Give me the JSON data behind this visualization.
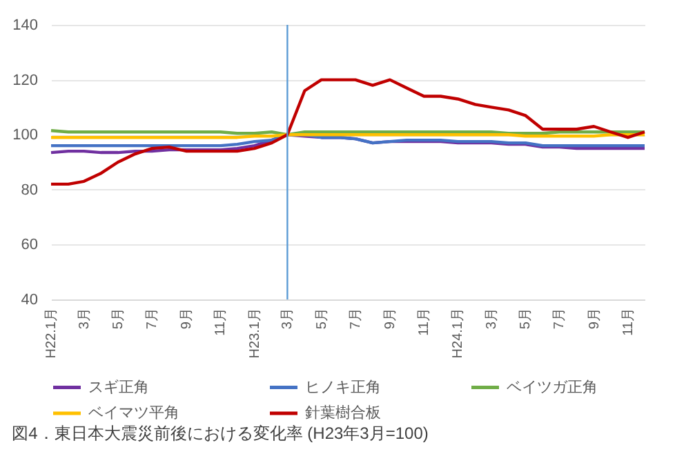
{
  "chart_data": {
    "type": "line",
    "title": "図4．東日本大震災前後における変化率 (H23年3月=100)",
    "x": [
      "2010-01",
      "2010-02",
      "2010-03",
      "2010-04",
      "2010-05",
      "2010-06",
      "2010-07",
      "2010-08",
      "2010-09",
      "2010-10",
      "2010-11",
      "2010-12",
      "2011-01",
      "2011-02",
      "2011-03",
      "2011-04",
      "2011-05",
      "2011-06",
      "2011-07",
      "2011-08",
      "2011-09",
      "2011-10",
      "2011-11",
      "2011-12",
      "2012-01",
      "2012-02",
      "2012-03",
      "2012-04",
      "2012-05",
      "2012-06",
      "2012-07",
      "2012-08",
      "2012-09",
      "2012-10",
      "2012-11",
      "2012-12"
    ],
    "series": [
      {
        "name": "スギ正角",
        "color": "#7030a0",
        "values": [
          93.5,
          94,
          94,
          93.5,
          93.5,
          94,
          94,
          94.5,
          94.5,
          94.5,
          94.5,
          95,
          96,
          98,
          100,
          99.5,
          99,
          99,
          98.5,
          97,
          97.5,
          97.5,
          97.5,
          97.5,
          97,
          97,
          97,
          96.5,
          96.5,
          95.5,
          95.5,
          95,
          95,
          95,
          95,
          95
        ]
      },
      {
        "name": "ヒノキ正角",
        "color": "#4472c4",
        "values": [
          96,
          96,
          96,
          96,
          96,
          96,
          96,
          96,
          96,
          96,
          96,
          96.5,
          97.5,
          98,
          100,
          100,
          99,
          99,
          98.5,
          97,
          97.5,
          98,
          98,
          98,
          97.5,
          97.5,
          97.5,
          97,
          97,
          96,
          96,
          96,
          96,
          96,
          96,
          96
        ]
      },
      {
        "name": "ベイツガ正角",
        "color": "#70ad47",
        "values": [
          101.5,
          101,
          101,
          101,
          101,
          101,
          101,
          101,
          101,
          101,
          101,
          100.5,
          100.5,
          101,
          100,
          101,
          101,
          101,
          101,
          101,
          101,
          101,
          101,
          101,
          101,
          101,
          101,
          100.5,
          100.5,
          100.5,
          101,
          101,
          101,
          101,
          101,
          101
        ]
      },
      {
        "name": "ベイマツ平角",
        "color": "#ffc000",
        "values": [
          99,
          99,
          99,
          99,
          99,
          99,
          99,
          99,
          99,
          99,
          99,
          99,
          99.5,
          99.5,
          100,
          100,
          100,
          100,
          100,
          100,
          100,
          100,
          100,
          100,
          100,
          100,
          100,
          100,
          99.5,
          99.5,
          99.5,
          99.5,
          99.5,
          100,
          100,
          100
        ]
      },
      {
        "name": "針葉樹合板",
        "color": "#c00000",
        "values": [
          82,
          82,
          83,
          86,
          90,
          93,
          95,
          95.5,
          94,
          94,
          94,
          94,
          95,
          97,
          100,
          116,
          120,
          120,
          120,
          118,
          120,
          117,
          114,
          114,
          113,
          111,
          110,
          109,
          107,
          102,
          102,
          102,
          103,
          101,
          99,
          101
        ]
      }
    ],
    "xticks": [
      {
        "value": "2010-01",
        "label": "H22.1月"
      },
      {
        "value": "2010-03",
        "label": "3月"
      },
      {
        "value": "2010-05",
        "label": "5月"
      },
      {
        "value": "2010-07",
        "label": "7月"
      },
      {
        "value": "2010-09",
        "label": "9月"
      },
      {
        "value": "2010-11",
        "label": "11月"
      },
      {
        "value": "2011-01",
        "label": "H23.1月"
      },
      {
        "value": "2011-03",
        "label": "3月"
      },
      {
        "value": "2011-05",
        "label": "5月"
      },
      {
        "value": "2011-07",
        "label": "7月"
      },
      {
        "value": "2011-09",
        "label": "9月"
      },
      {
        "value": "2011-11",
        "label": "11月"
      },
      {
        "value": "2012-01",
        "label": "H24.1月"
      },
      {
        "value": "2012-03",
        "label": "3月"
      },
      {
        "value": "2012-05",
        "label": "5月"
      },
      {
        "value": "2012-07",
        "label": "7月"
      },
      {
        "value": "2012-09",
        "label": "9月"
      },
      {
        "value": "2012-11",
        "label": "11月"
      }
    ],
    "xlim": [
      "2010-01",
      "2012-12"
    ],
    "ylim": [
      40,
      140
    ],
    "yticks": [
      40,
      60,
      80,
      100,
      120,
      140
    ],
    "ref_lines": [
      {
        "axis": "x",
        "value": "2011-03",
        "color": "#5b9bd5"
      }
    ],
    "grid": "y",
    "legend": "bottom",
    "marker": "none",
    "line_style": "solid"
  }
}
